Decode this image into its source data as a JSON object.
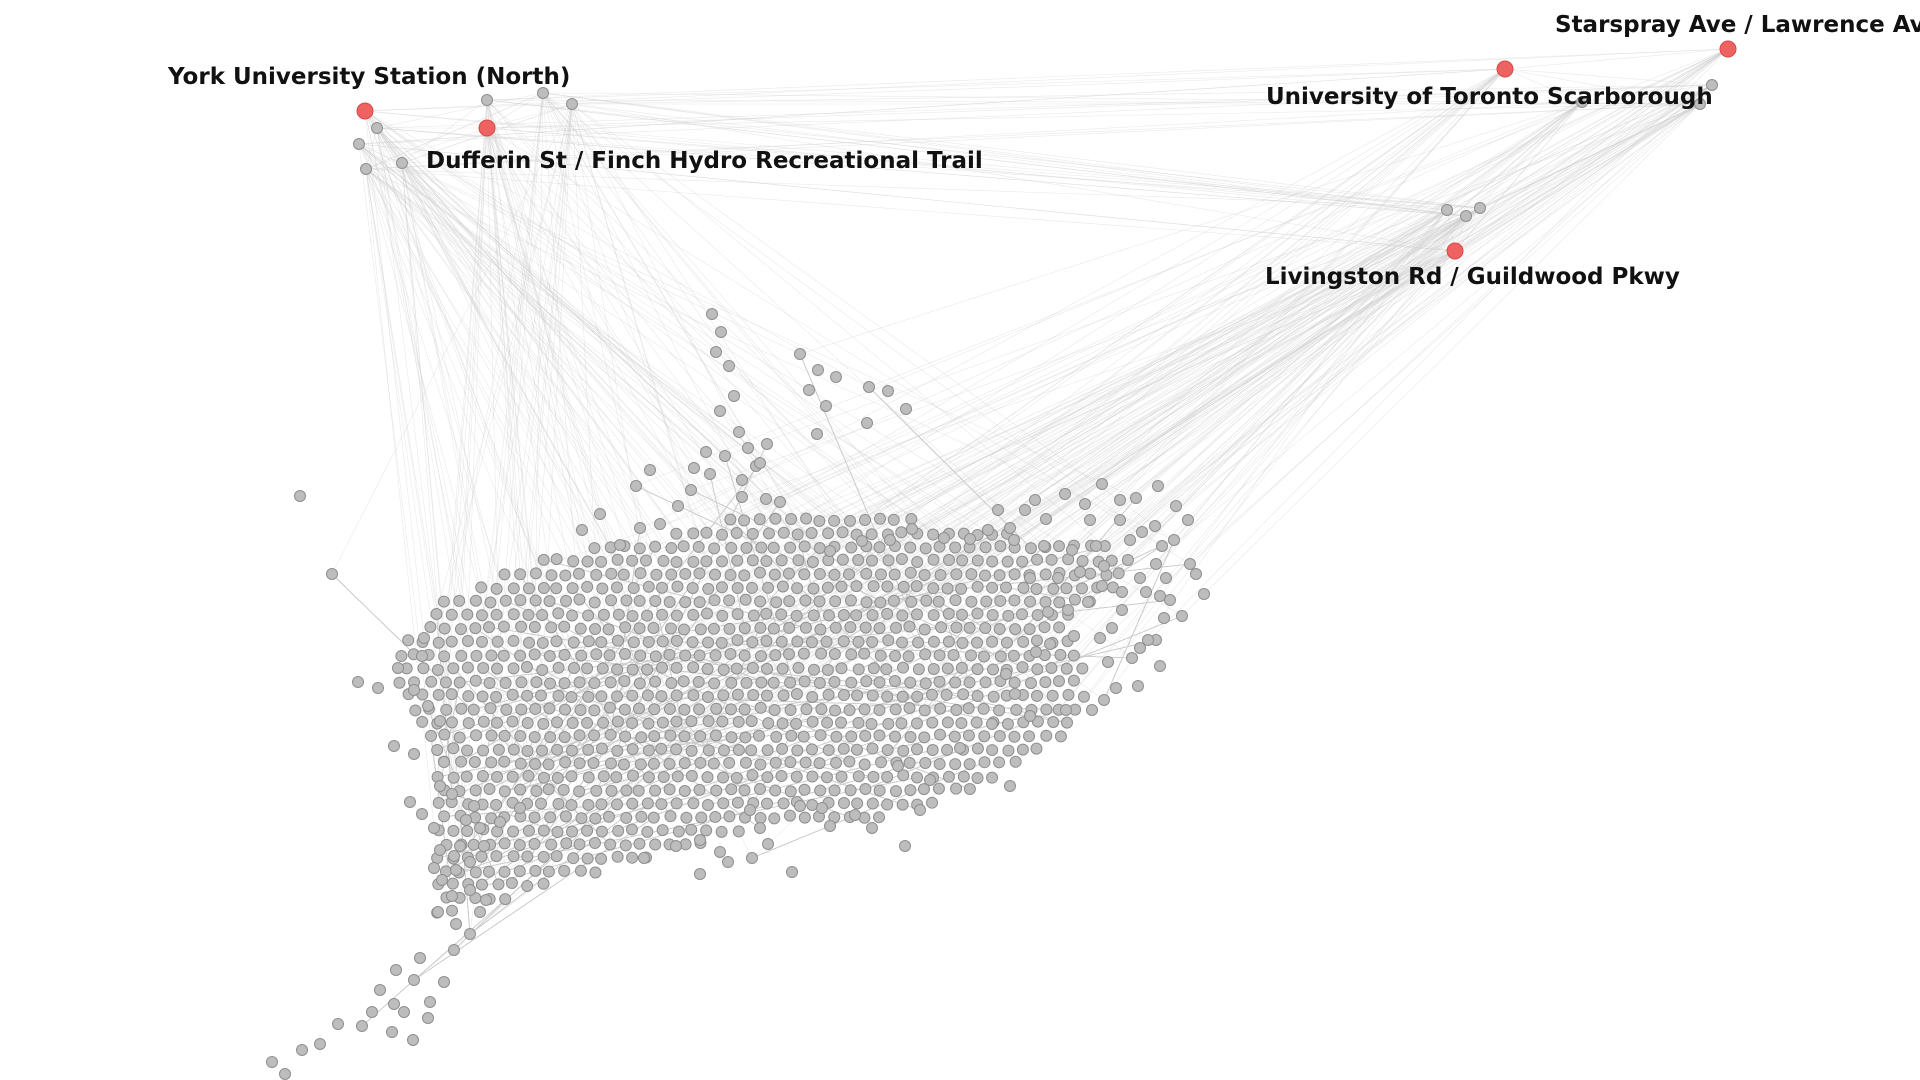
{
  "graph": {
    "node_color": "#bdbdbd",
    "node_stroke": "#8f8f8f",
    "highlight_color": "#ef6262",
    "edge_color": "#cfcfcf",
    "background": "#ffffff"
  },
  "highlighted_stations": [
    {
      "label": "York University Station (North)"
    },
    {
      "label": "Dufferin St / Finch Hydro Recreational Trail"
    },
    {
      "label": "University of Toronto Scarborough"
    },
    {
      "label": "Starspray Ave / Lawrence Ave E"
    },
    {
      "label": "Livingston Rd / Guildwood Pkwy"
    }
  ]
}
